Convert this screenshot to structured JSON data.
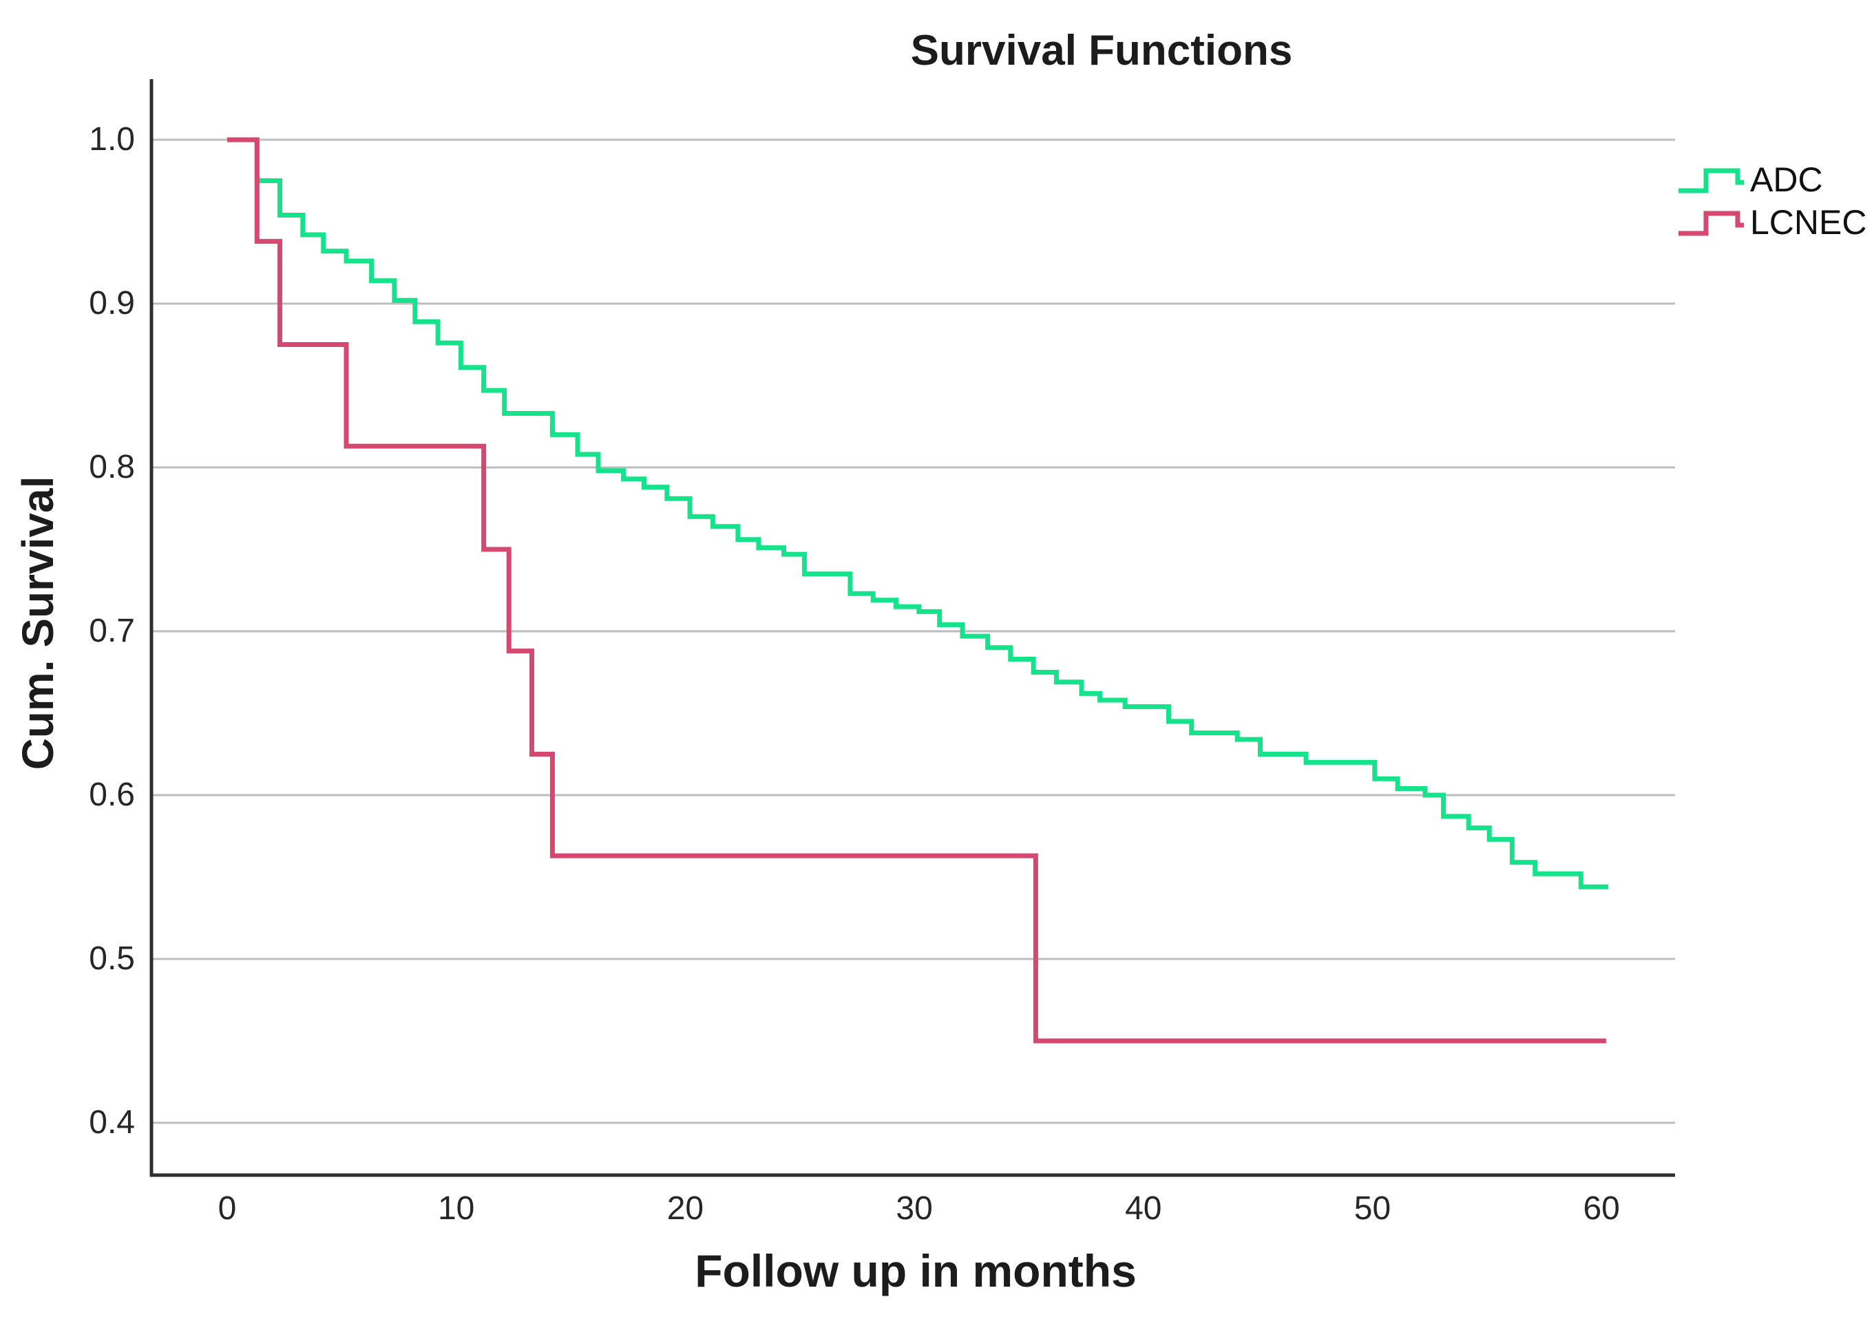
{
  "title": "Survival Functions",
  "axes": {
    "x_label": "Follow up in months",
    "y_label": "Cum. Survival",
    "x_ticks": [
      0,
      10,
      20,
      30,
      40,
      50,
      60
    ],
    "y_ticks": [
      "1.0",
      "0.9",
      "0.8",
      "0.7",
      "0.6",
      "0.5",
      "0.4"
    ]
  },
  "legend": {
    "position": "top-right",
    "items": [
      {
        "label": "ADC",
        "color": "#17e28c"
      },
      {
        "label": "LCNEC",
        "color": "#d5486f"
      }
    ]
  },
  "colors": {
    "adc": "#17e28c",
    "lcnec": "#d5486f",
    "gridline": "#bcbcbc",
    "axis": "#2f2f2f"
  },
  "chart_data": {
    "type": "line",
    "subtype": "kaplan-meier-step",
    "title": "Survival Functions",
    "xlabel": "Follow up in months",
    "ylabel": "Cum. Survival",
    "xlim": [
      -3.3,
      63.2
    ],
    "ylim": [
      0.37,
      1.04
    ],
    "grid": "horizontal-only",
    "legend_position": "top-right",
    "series": [
      {
        "name": "ADC",
        "color": "#17e28c",
        "end": 60.3,
        "steps": [
          [
            0,
            1.0
          ],
          [
            1.3,
            0.975
          ],
          [
            2.3,
            0.954
          ],
          [
            3.3,
            0.942
          ],
          [
            4.2,
            0.932
          ],
          [
            5.2,
            0.926
          ],
          [
            6.3,
            0.914
          ],
          [
            7.3,
            0.902
          ],
          [
            8.2,
            0.889
          ],
          [
            9.2,
            0.876
          ],
          [
            10.2,
            0.861
          ],
          [
            11.2,
            0.847
          ],
          [
            12.1,
            0.833
          ],
          [
            14.2,
            0.82
          ],
          [
            15.3,
            0.808
          ],
          [
            16.2,
            0.798
          ],
          [
            17.3,
            0.793
          ],
          [
            18.2,
            0.788
          ],
          [
            19.2,
            0.781
          ],
          [
            20.2,
            0.77
          ],
          [
            21.2,
            0.764
          ],
          [
            22.3,
            0.756
          ],
          [
            23.2,
            0.751
          ],
          [
            24.3,
            0.747
          ],
          [
            25.2,
            0.735
          ],
          [
            27.2,
            0.723
          ],
          [
            28.2,
            0.719
          ],
          [
            29.2,
            0.715
          ],
          [
            30.2,
            0.712
          ],
          [
            31.1,
            0.704
          ],
          [
            32.1,
            0.697
          ],
          [
            33.2,
            0.69
          ],
          [
            34.2,
            0.683
          ],
          [
            35.2,
            0.675
          ],
          [
            36.2,
            0.669
          ],
          [
            37.3,
            0.662
          ],
          [
            38.1,
            0.658
          ],
          [
            39.2,
            0.654
          ],
          [
            41.1,
            0.645
          ],
          [
            42.1,
            0.638
          ],
          [
            44.1,
            0.634
          ],
          [
            45.1,
            0.625
          ],
          [
            47.1,
            0.62
          ],
          [
            50.1,
            0.61
          ],
          [
            51.1,
            0.604
          ],
          [
            52.3,
            0.6
          ],
          [
            53.1,
            0.587
          ],
          [
            54.2,
            0.58
          ],
          [
            55.1,
            0.573
          ],
          [
            56.1,
            0.559
          ],
          [
            57.1,
            0.552
          ],
          [
            59.1,
            0.544
          ]
        ]
      },
      {
        "name": "LCNEC",
        "color": "#d5486f",
        "end": 60.2,
        "steps": [
          [
            0,
            1.0
          ],
          [
            1.3,
            0.938
          ],
          [
            2.3,
            0.875
          ],
          [
            5.2,
            0.813
          ],
          [
            11.2,
            0.75
          ],
          [
            12.3,
            0.688
          ],
          [
            13.3,
            0.625
          ],
          [
            14.2,
            0.563
          ],
          [
            35.3,
            0.45
          ]
        ]
      }
    ]
  }
}
